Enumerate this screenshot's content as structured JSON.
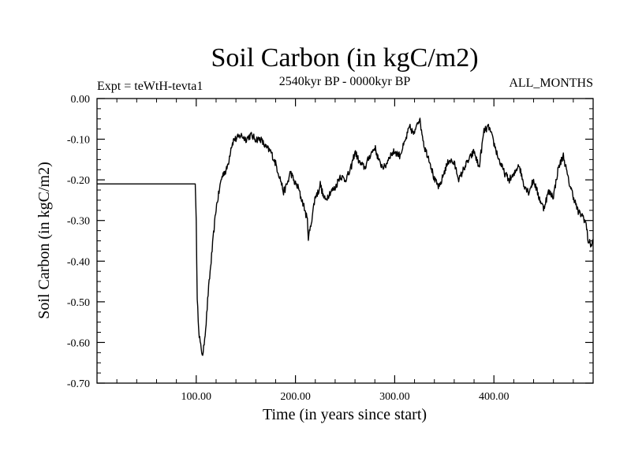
{
  "chart_data": {
    "type": "line",
    "title": "Soil Carbon (in kgC/m2)",
    "subtitle_left": "Expt = teWtH-tevta1",
    "subtitle_center": "2540kyr BP - 0000kyr BP",
    "subtitle_right": "ALL_MONTHS",
    "xlabel": "Time (in years since start)",
    "ylabel": "Soil Carbon (in kgC/m2)",
    "xlim": [
      0,
      500
    ],
    "ylim": [
      -0.7,
      0.0
    ],
    "x_ticks": [
      100,
      200,
      300,
      400
    ],
    "x_tick_labels": [
      "100.00",
      "200.00",
      "300.00",
      "400.00"
    ],
    "y_ticks": [
      0.0,
      -0.1,
      -0.2,
      -0.3,
      -0.4,
      -0.5,
      -0.6,
      -0.7
    ],
    "y_tick_labels": [
      "0.00",
      "-0.10",
      "-0.20",
      "-0.30",
      "-0.40",
      "-0.50",
      "-0.60",
      "-0.70"
    ],
    "grid": false,
    "line_color": "#000000",
    "series": [
      {
        "name": "Soil Carbon",
        "x": [
          0,
          99,
          100,
          101,
          103,
          105,
          107,
          108,
          110,
          112,
          115,
          118,
          120,
          123,
          125,
          128,
          130,
          133,
          135,
          138,
          140,
          145,
          150,
          155,
          160,
          165,
          170,
          175,
          180,
          185,
          188,
          190,
          193,
          195,
          198,
          200,
          203,
          205,
          208,
          210,
          212,
          213,
          215,
          218,
          220,
          223,
          225,
          228,
          230,
          235,
          240,
          245,
          250,
          255,
          260,
          265,
          270,
          275,
          280,
          285,
          290,
          295,
          300,
          305,
          310,
          315,
          320,
          322,
          325,
          328,
          330,
          335,
          340,
          345,
          350,
          355,
          360,
          365,
          370,
          375,
          380,
          385,
          390,
          395,
          400,
          405,
          410,
          415,
          420,
          425,
          430,
          435,
          440,
          445,
          450,
          455,
          460,
          465,
          470,
          475,
          480,
          485,
          490,
          493,
          495,
          498,
          500
        ],
        "y": [
          -0.21,
          -0.21,
          -0.3,
          -0.5,
          -0.58,
          -0.62,
          -0.63,
          -0.6,
          -0.55,
          -0.48,
          -0.4,
          -0.32,
          -0.27,
          -0.23,
          -0.2,
          -0.18,
          -0.18,
          -0.15,
          -0.12,
          -0.1,
          -0.1,
          -0.09,
          -0.1,
          -0.09,
          -0.1,
          -0.1,
          -0.12,
          -0.13,
          -0.16,
          -0.2,
          -0.23,
          -0.22,
          -0.2,
          -0.18,
          -0.2,
          -0.21,
          -0.22,
          -0.24,
          -0.26,
          -0.28,
          -0.3,
          -0.34,
          -0.32,
          -0.27,
          -0.24,
          -0.23,
          -0.21,
          -0.24,
          -0.25,
          -0.23,
          -0.22,
          -0.19,
          -0.2,
          -0.18,
          -0.13,
          -0.16,
          -0.17,
          -0.14,
          -0.12,
          -0.16,
          -0.17,
          -0.14,
          -0.13,
          -0.14,
          -0.11,
          -0.07,
          -0.09,
          -0.06,
          -0.05,
          -0.09,
          -0.12,
          -0.15,
          -0.2,
          -0.22,
          -0.18,
          -0.15,
          -0.16,
          -0.2,
          -0.17,
          -0.15,
          -0.13,
          -0.17,
          -0.08,
          -0.07,
          -0.11,
          -0.15,
          -0.18,
          -0.2,
          -0.19,
          -0.16,
          -0.21,
          -0.23,
          -0.2,
          -0.24,
          -0.27,
          -0.23,
          -0.24,
          -0.17,
          -0.14,
          -0.2,
          -0.24,
          -0.28,
          -0.29,
          -0.31,
          -0.35,
          -0.36,
          -0.35
        ]
      }
    ]
  }
}
